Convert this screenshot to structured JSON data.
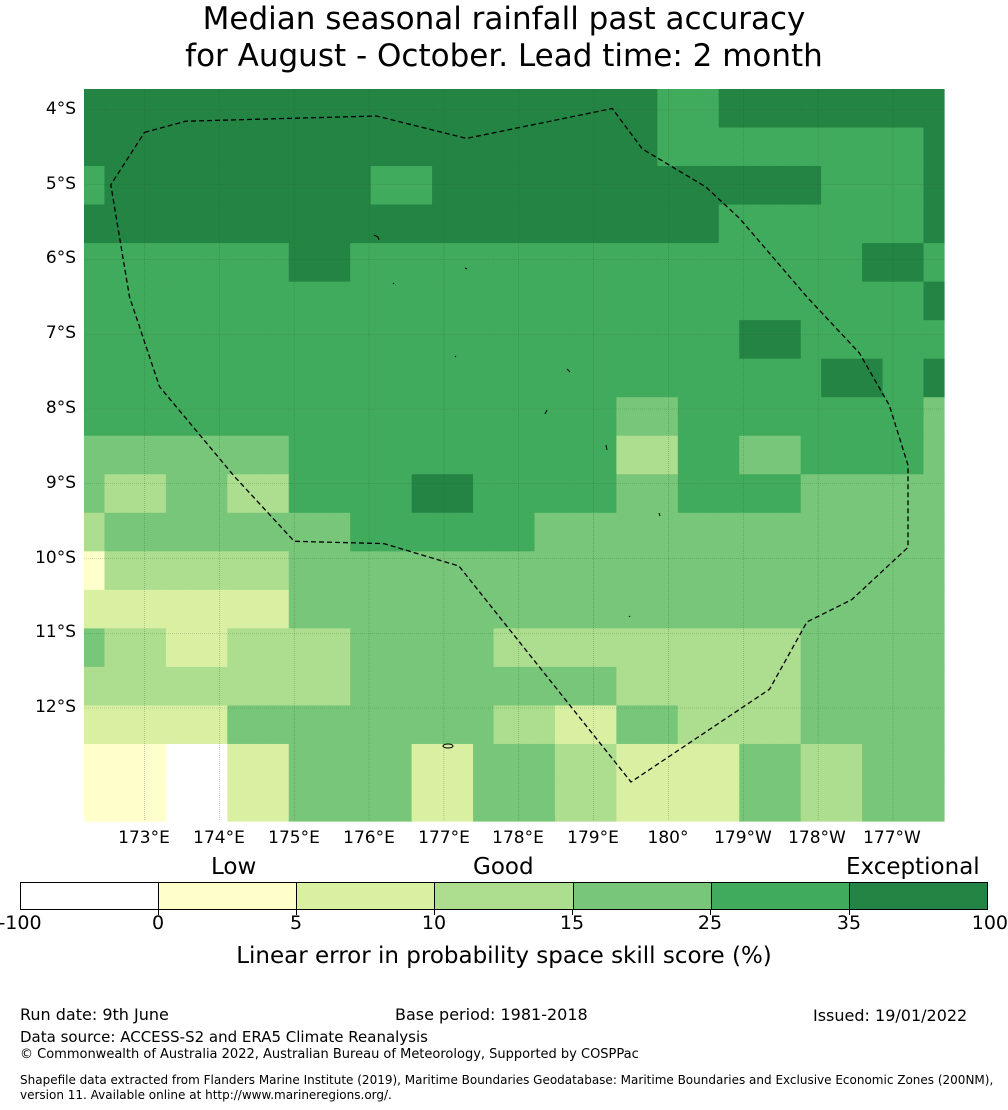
{
  "title": {
    "line1": "Median seasonal rainfall past accuracy",
    "line2": "for August - October. Lead time: 2 month"
  },
  "map": {
    "lat_labels": [
      "4°S",
      "5°S",
      "6°S",
      "7°S",
      "8°S",
      "9°S",
      "10°S",
      "11°S",
      "12°S"
    ],
    "lon_labels": [
      "173°E",
      "174°E",
      "175°E",
      "176°E",
      "177°E",
      "178°E",
      "179°E",
      "180°",
      "179°W",
      "178°W",
      "177°W"
    ],
    "colors": [
      "#ffffff",
      "#ffffcc",
      "#d9f0a3",
      "#addd8e",
      "#78c679",
      "#41ab5d",
      "#238443"
    ],
    "grid": [
      [
        6,
        6,
        6,
        6,
        6,
        6,
        6,
        6,
        6,
        6,
        6,
        6,
        6,
        6,
        6,
        6,
        6,
        6,
        6,
        6,
        6,
        6,
        6,
        6,
        6,
        6,
        6,
        6,
        5,
        5,
        5,
        6,
        6,
        6,
        6,
        6,
        6,
        6,
        6,
        6,
        6,
        6
      ],
      [
        6,
        6,
        6,
        6,
        6,
        6,
        6,
        6,
        6,
        6,
        6,
        6,
        6,
        6,
        6,
        6,
        6,
        6,
        6,
        6,
        6,
        6,
        6,
        6,
        6,
        6,
        6,
        6,
        5,
        5,
        5,
        5,
        5,
        5,
        5,
        5,
        5,
        5,
        5,
        5,
        5,
        6
      ],
      [
        5,
        6,
        6,
        6,
        6,
        6,
        6,
        6,
        6,
        6,
        6,
        6,
        6,
        6,
        5,
        5,
        5,
        6,
        6,
        6,
        6,
        6,
        6,
        6,
        6,
        6,
        6,
        6,
        6,
        6,
        6,
        6,
        6,
        6,
        6,
        6,
        5,
        5,
        5,
        5,
        5,
        6
      ],
      [
        6,
        6,
        6,
        6,
        6,
        6,
        6,
        6,
        6,
        6,
        6,
        6,
        6,
        6,
        6,
        6,
        6,
        6,
        6,
        6,
        6,
        6,
        6,
        6,
        6,
        6,
        6,
        6,
        6,
        6,
        6,
        5,
        5,
        5,
        5,
        5,
        5,
        5,
        5,
        5,
        5,
        6
      ],
      [
        5,
        5,
        5,
        5,
        5,
        5,
        5,
        5,
        5,
        5,
        6,
        6,
        6,
        5,
        5,
        5,
        5,
        5,
        5,
        5,
        5,
        5,
        5,
        5,
        5,
        5,
        5,
        5,
        5,
        5,
        5,
        5,
        5,
        5,
        5,
        5,
        5,
        5,
        6,
        6,
        6,
        5
      ],
      [
        5,
        5,
        5,
        5,
        5,
        5,
        5,
        5,
        5,
        5,
        5,
        5,
        5,
        5,
        5,
        5,
        5,
        5,
        5,
        5,
        5,
        5,
        5,
        5,
        5,
        5,
        5,
        5,
        5,
        5,
        5,
        5,
        5,
        5,
        5,
        5,
        5,
        5,
        5,
        5,
        5,
        6
      ],
      [
        5,
        5,
        5,
        5,
        5,
        5,
        5,
        5,
        5,
        5,
        5,
        5,
        5,
        5,
        5,
        5,
        5,
        5,
        5,
        5,
        5,
        5,
        5,
        5,
        5,
        5,
        5,
        5,
        5,
        5,
        5,
        5,
        6,
        6,
        6,
        5,
        5,
        5,
        5,
        5,
        5,
        5
      ],
      [
        5,
        5,
        5,
        5,
        5,
        5,
        5,
        5,
        5,
        5,
        5,
        5,
        5,
        5,
        5,
        5,
        5,
        5,
        5,
        5,
        5,
        5,
        5,
        5,
        5,
        5,
        5,
        5,
        5,
        5,
        5,
        5,
        5,
        5,
        5,
        5,
        6,
        6,
        6,
        5,
        5,
        6
      ],
      [
        5,
        5,
        5,
        5,
        5,
        5,
        5,
        5,
        5,
        5,
        5,
        5,
        5,
        5,
        5,
        5,
        5,
        5,
        5,
        5,
        5,
        5,
        5,
        5,
        5,
        5,
        4,
        4,
        4,
        5,
        5,
        5,
        5,
        5,
        5,
        5,
        5,
        5,
        5,
        5,
        5,
        4
      ],
      [
        4,
        4,
        4,
        4,
        4,
        4,
        4,
        4,
        4,
        4,
        5,
        5,
        5,
        5,
        5,
        5,
        5,
        5,
        5,
        5,
        5,
        5,
        5,
        5,
        5,
        5,
        3,
        3,
        3,
        5,
        5,
        5,
        4,
        4,
        4,
        5,
        5,
        5,
        5,
        5,
        5,
        4
      ],
      [
        4,
        3,
        3,
        3,
        4,
        4,
        4,
        3,
        3,
        3,
        5,
        5,
        5,
        5,
        5,
        5,
        6,
        6,
        6,
        5,
        5,
        5,
        5,
        5,
        5,
        5,
        4,
        4,
        4,
        5,
        5,
        5,
        5,
        5,
        5,
        4,
        4,
        4,
        4,
        4,
        4,
        4
      ],
      [
        3,
        4,
        4,
        4,
        4,
        4,
        4,
        4,
        4,
        4,
        4,
        4,
        4,
        5,
        5,
        5,
        5,
        5,
        5,
        5,
        5,
        5,
        4,
        4,
        4,
        4,
        4,
        4,
        4,
        4,
        4,
        4,
        4,
        4,
        4,
        4,
        4,
        4,
        4,
        4,
        4,
        4
      ],
      [
        1,
        3,
        3,
        3,
        3,
        3,
        3,
        3,
        3,
        3,
        4,
        4,
        4,
        4,
        4,
        4,
        4,
        4,
        4,
        4,
        4,
        4,
        4,
        4,
        4,
        4,
        4,
        4,
        4,
        4,
        4,
        4,
        4,
        4,
        4,
        4,
        4,
        4,
        4,
        4,
        4,
        4
      ],
      [
        2,
        2,
        2,
        2,
        2,
        2,
        2,
        2,
        2,
        2,
        4,
        4,
        4,
        4,
        4,
        4,
        4,
        4,
        4,
        4,
        4,
        4,
        4,
        4,
        4,
        4,
        4,
        4,
        4,
        4,
        4,
        4,
        4,
        4,
        4,
        4,
        4,
        4,
        4,
        4,
        4,
        4
      ],
      [
        4,
        3,
        3,
        3,
        2,
        2,
        2,
        3,
        3,
        3,
        3,
        3,
        3,
        4,
        4,
        4,
        4,
        4,
        4,
        4,
        3,
        3,
        3,
        3,
        3,
        3,
        3,
        3,
        3,
        3,
        3,
        3,
        3,
        3,
        3,
        4,
        4,
        4,
        4,
        4,
        4,
        4
      ],
      [
        3,
        3,
        3,
        3,
        3,
        3,
        3,
        3,
        3,
        3,
        3,
        3,
        3,
        4,
        4,
        4,
        4,
        4,
        4,
        4,
        4,
        4,
        4,
        4,
        4,
        4,
        3,
        3,
        3,
        3,
        3,
        3,
        3,
        3,
        3,
        4,
        4,
        4,
        4,
        4,
        4,
        4
      ],
      [
        2,
        2,
        2,
        2,
        2,
        2,
        2,
        4,
        4,
        4,
        4,
        4,
        4,
        4,
        4,
        4,
        4,
        4,
        4,
        4,
        3,
        3,
        3,
        2,
        2,
        2,
        4,
        4,
        4,
        3,
        3,
        3,
        3,
        3,
        3,
        4,
        4,
        4,
        4,
        4,
        4,
        4
      ],
      [
        1,
        1,
        1,
        1,
        0,
        0,
        0,
        2,
        2,
        2,
        4,
        4,
        4,
        4,
        4,
        4,
        2,
        2,
        2,
        4,
        4,
        4,
        4,
        3,
        3,
        3,
        2,
        2,
        2,
        2,
        2,
        2,
        4,
        4,
        4,
        3,
        3,
        3,
        4,
        4,
        4,
        4
      ],
      [
        1,
        1,
        1,
        1,
        0,
        0,
        0,
        2,
        2,
        2,
        4,
        4,
        4,
        4,
        4,
        4,
        2,
        2,
        2,
        4,
        4,
        4,
        4,
        3,
        3,
        3,
        2,
        2,
        2,
        2,
        2,
        2,
        4,
        4,
        4,
        3,
        3,
        3,
        4,
        4,
        4,
        4
      ]
    ],
    "eez_boundary": [
      [
        173.0,
        -4.3
      ],
      [
        173.55,
        -4.15
      ],
      [
        176.1,
        -4.08
      ],
      [
        177.3,
        -4.38
      ],
      [
        179.25,
        -3.98
      ],
      [
        179.65,
        -4.52
      ],
      [
        180.5,
        -5.03
      ],
      [
        180.95,
        -5.45
      ],
      [
        181.85,
        -6.5
      ],
      [
        182.55,
        -7.25
      ],
      [
        182.95,
        -7.95
      ],
      [
        183.2,
        -8.75
      ],
      [
        183.2,
        -9.85
      ],
      [
        182.45,
        -10.55
      ],
      [
        181.85,
        -10.85
      ],
      [
        181.35,
        -11.75
      ],
      [
        179.5,
        -12.99
      ],
      [
        177.2,
        -10.1
      ],
      [
        176.2,
        -9.8
      ],
      [
        175.0,
        -9.77
      ],
      [
        174.2,
        -8.9
      ],
      [
        173.2,
        -7.7
      ],
      [
        172.8,
        -6.5
      ],
      [
        172.55,
        -5.0
      ],
      [
        173.0,
        -4.3
      ]
    ]
  },
  "legend": {
    "categories": [
      "Low",
      "Good",
      "Exceptional"
    ],
    "ticks": [
      "-100",
      "0",
      "5",
      "10",
      "15",
      "25",
      "35",
      "100"
    ],
    "label": "Linear error in probability space skill score (%)"
  },
  "footer": {
    "run_date": "Run date: 9th June",
    "base_period": "Base period: 1981-2018",
    "issued": "Issued: 19/01/2022",
    "data_source": "Data source: ACCESS-S2 and ERA5 Climate Reanalysis",
    "copyright": "© Commonwealth of Australia 2022, Australian Bureau of Meteorology, Supported by COSPPac",
    "shapefile_line1": "Shapefile data extracted from Flanders Marine Institute (2019), Maritime Boundaries Geodatabase: Maritime Boundaries and Exclusive Economic Zones (200NM),",
    "shapefile_line2": "version 11. Available online at http://www.marineregions.org/."
  }
}
